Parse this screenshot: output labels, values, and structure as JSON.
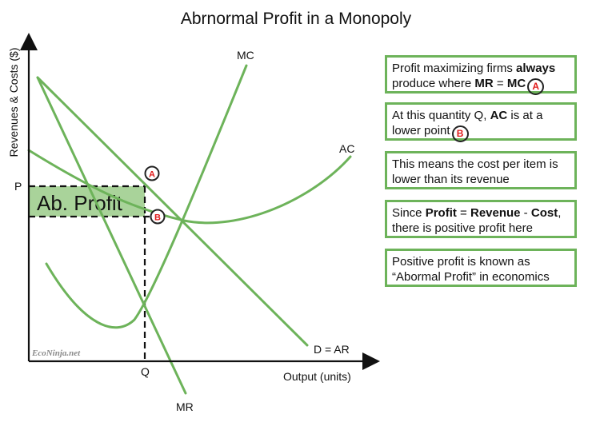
{
  "title": "Abrnormal Profit in a Monopoly",
  "y_axis_label": "Revenues & Costs ($)",
  "x_axis_label": "Output (units)",
  "labels": {
    "mc": "MC",
    "ac": "AC",
    "demand": "D = AR",
    "mr": "MR",
    "p": "P",
    "q": "Q",
    "profit_area": "Ab. Profit",
    "point_a": "A",
    "point_b": "B",
    "watermark": "EcoNinja.net"
  },
  "colors": {
    "curve": "#6db35a",
    "profit_fill": "#a9d39a",
    "marker_text": "#e01b1b",
    "axis": "#111111"
  },
  "notes": [
    {
      "parts": [
        {
          "t": "Profit maximizing firms "
        },
        {
          "t": "always",
          "b": true
        },
        {
          "t": " produce where "
        },
        {
          "t": "MR",
          "b": true
        },
        {
          "t": " = "
        },
        {
          "t": "MC",
          "b": true
        }
      ],
      "marker": "A"
    },
    {
      "parts": [
        {
          "t": "At this quantity Q, "
        },
        {
          "t": "AC",
          "b": true
        },
        {
          "t": " is at a lower point"
        }
      ],
      "marker": "B"
    },
    {
      "parts": [
        {
          "t": "This means the cost per item is lower than its revenue"
        }
      ]
    },
    {
      "parts": [
        {
          "t": "Since "
        },
        {
          "t": "Profit",
          "b": true
        },
        {
          "t": " = "
        },
        {
          "t": "Revenue",
          "b": true
        },
        {
          "t": " - "
        },
        {
          "t": "Cost",
          "b": true
        },
        {
          "t": ", there is positive profit here"
        }
      ]
    },
    {
      "parts": [
        {
          "t": "Positive profit is known as “Abormal Profit” in economics"
        }
      ]
    }
  ]
}
